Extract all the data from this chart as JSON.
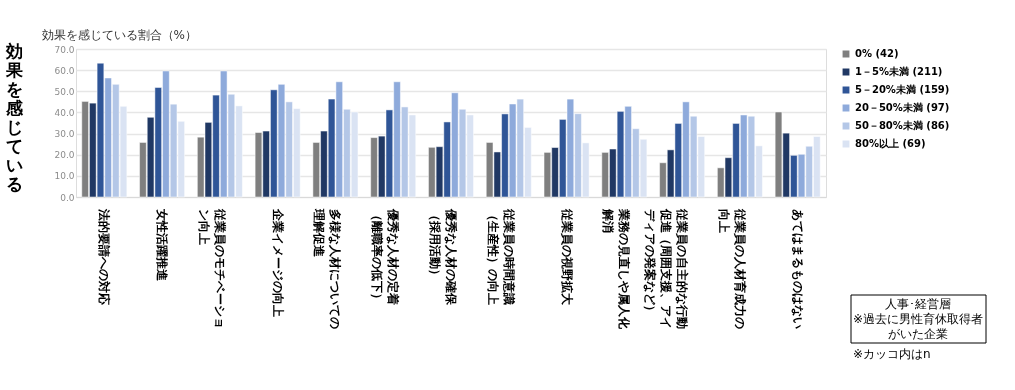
{
  "chart_data": {
    "type": "bar",
    "ylabel": "効果を感じている割合（%）",
    "categories": [
      "法的要請への対応",
      "女性活躍推進",
      "従業員のモチベーション向上",
      "企業イメージの向上",
      "多様な人材についての理解促進",
      "優秀な人材の定着（離職率の低下）",
      "優秀な人材の確保（採用活動）",
      "従業員の時間意識（生産性）の向上",
      "従業員の視野拡大",
      "業務の見直しや属人化解消",
      "従業員の自主的な行動促進（周囲支援、アイディアの発案など）",
      "従業員の人材育成力の向上",
      "あてはまるものはない"
    ],
    "series": [
      {
        "name": "0% (42)",
        "color": "#7f7f7f",
        "values": [
          45.2,
          25.8,
          28.3,
          30.5,
          25.8,
          28.1,
          23.5,
          25.8,
          21.1,
          21.1,
          16.2,
          13.8,
          40.2
        ]
      },
      {
        "name": "1－5%未満 (211)",
        "color": "#203864",
        "values": [
          44.4,
          37.7,
          35.3,
          31.2,
          31.2,
          28.8,
          23.8,
          21.3,
          23.4,
          22.7,
          22.3,
          18.6,
          30.2
        ]
      },
      {
        "name": "5－20%未満 (159)",
        "color": "#2f5597",
        "values": [
          63.3,
          51.8,
          48.2,
          50.7,
          46.3,
          41.2,
          35.5,
          39.3,
          36.7,
          40.5,
          34.8,
          34.8,
          19.7
        ]
      },
      {
        "name": "20－50%未満 (97)",
        "color": "#8eaadb",
        "values": [
          56.3,
          59.6,
          59.6,
          53.3,
          54.5,
          54.5,
          49.3,
          44.0,
          46.3,
          42.9,
          45.0,
          38.8,
          20.2
        ]
      },
      {
        "name": "50－80%未満 (86)",
        "color": "#b4c7e7",
        "values": [
          53.3,
          43.9,
          48.6,
          45.0,
          41.5,
          42.6,
          41.5,
          46.3,
          39.4,
          32.3,
          38.2,
          38.2,
          24.0
        ]
      },
      {
        "name": "80%以上 (69)",
        "color": "#dae3f3",
        "values": [
          42.9,
          35.8,
          43.1,
          41.8,
          40.2,
          38.8,
          38.8,
          32.9,
          25.6,
          27.3,
          28.6,
          24.2,
          28.6
        ]
      }
    ],
    "ylim": [
      0,
      70
    ],
    "yticks": [
      {
        "value": 0,
        "label": "0.0"
      },
      {
        "value": 10,
        "label": "10.0"
      },
      {
        "value": 20,
        "label": "20.0"
      },
      {
        "value": 30,
        "label": "30.0"
      },
      {
        "value": 40,
        "label": "40.0"
      },
      {
        "value": 50,
        "label": "50.0"
      },
      {
        "value": 60,
        "label": "60.0"
      },
      {
        "value": 70,
        "label": "70.0"
      }
    ],
    "grid": "y",
    "legend": "right",
    "annotations": [
      "効果を感じている",
      "人事･経営層",
      "※過去に男性育休取得者がいた企業",
      "※カッコ内はn"
    ]
  }
}
